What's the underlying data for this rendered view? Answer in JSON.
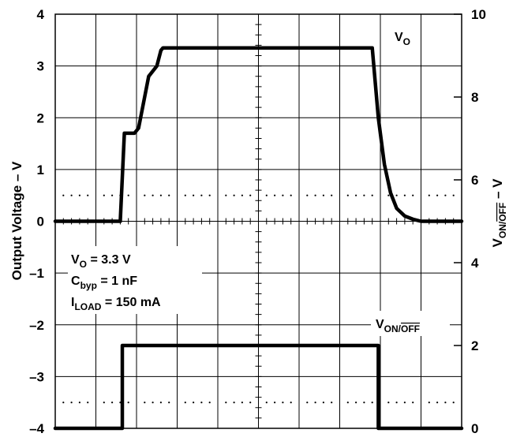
{
  "chart_data": {
    "type": "line",
    "left_axis": {
      "label_main": "Output Voltage – V",
      "range": [
        -4,
        4
      ],
      "ticks": [
        "4",
        "3",
        "2",
        "1",
        "0",
        "–1",
        "–2",
        "–3",
        "–4"
      ]
    },
    "right_axis": {
      "label_main": "V",
      "label_sub": "ON/",
      "label_sub_over": "OFF",
      "label_suffix": " – V",
      "range": [
        0,
        10
      ],
      "ticks": [
        "10",
        "8",
        "6",
        "4",
        "2",
        "0"
      ]
    },
    "grid": true,
    "x_divisions": 10,
    "x": [
      0,
      1.6,
      1.7,
      1.8,
      1.95,
      2.05,
      2.2,
      2.3,
      2.5,
      2.6,
      2.65,
      3,
      7.8,
      7.95,
      8.1,
      8.25,
      8.4,
      8.6,
      8.8,
      9,
      10
    ],
    "series": [
      {
        "name": "VO",
        "label_main": "V",
        "label_sub": "O",
        "axis": "left",
        "values": [
          0,
          0,
          1.7,
          1.7,
          1.7,
          1.8,
          2.4,
          2.8,
          3.0,
          3.3,
          3.35,
          3.35,
          3.35,
          2.0,
          1.1,
          0.55,
          0.25,
          0.1,
          0.04,
          0,
          0
        ]
      },
      {
        "name": "VON/OFF",
        "label_main": "V",
        "label_sub": "ON/",
        "label_sub_over": "OFF",
        "axis": "right",
        "x": [
          0,
          1.65,
          1.65,
          7.95,
          7.95,
          10
        ],
        "values": [
          0,
          0,
          2,
          2,
          0,
          0
        ]
      }
    ],
    "annotations": [
      {
        "main": "V",
        "sub": "O",
        "rest": " = 3.3 V"
      },
      {
        "main": "C",
        "sub": "byp",
        "rest": " = 1 nF"
      },
      {
        "main": "I",
        "sub": "LOAD",
        "rest": " = 150 mA"
      }
    ]
  }
}
